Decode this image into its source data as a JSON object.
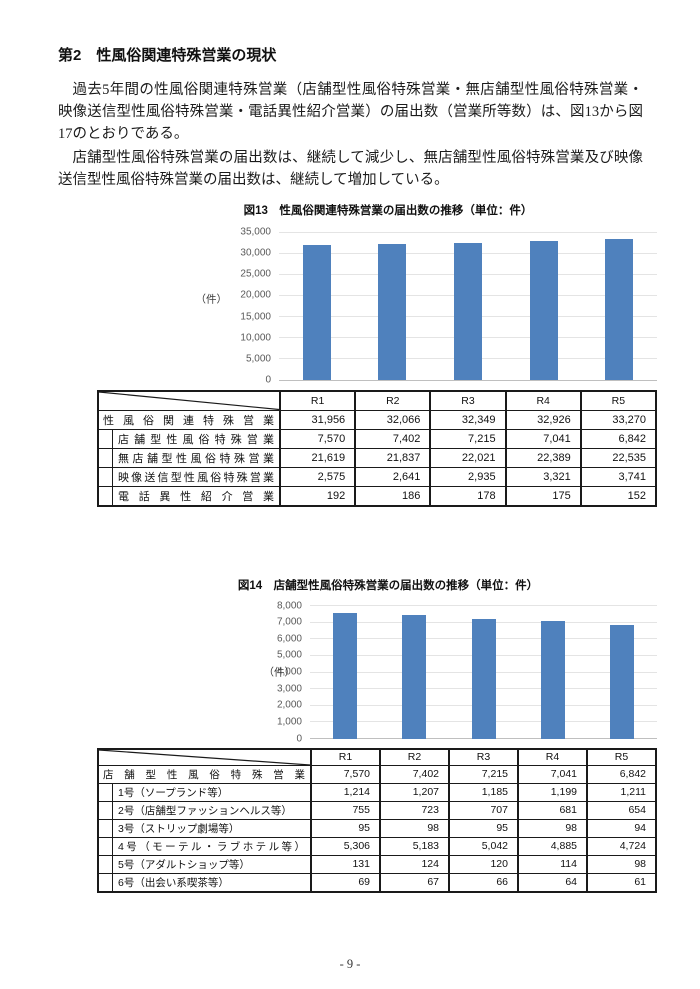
{
  "page": {
    "footer": "- 9 -"
  },
  "heading": {
    "number": "第2",
    "title": "性風俗関連特殊営業の現状"
  },
  "paragraphs": [
    "過去5年間の性風俗関連特殊営業（店舗型性風俗特殊営業・無店舗型性風俗特殊営業・映像送信型性風俗特殊営業・電話異性紹介営業）の届出数（営業所等数）は、図13から図17のとおりである。",
    "店舗型性風俗特殊営業の届出数は、継続して減少し、無店舗型性風俗特殊営業及び映像送信型性風俗特殊営業の届出数は、継続して増加している。"
  ],
  "chart_data": [
    {
      "id": "fig13",
      "type": "bar",
      "title": "図13　性風俗関連特殊営業の届出数の推移（単位：件）",
      "categories": [
        "R1",
        "R2",
        "R3",
        "R4",
        "R5"
      ],
      "values": [
        31956,
        32066,
        32349,
        32926,
        33270
      ],
      "ylabel": "（件）",
      "xlabel": "",
      "ylim": [
        0,
        35000
      ],
      "ytick_step": 5000,
      "yticks": [
        "35,000",
        "30,000",
        "25,000",
        "20,000",
        "15,000",
        "10,000",
        "5,000",
        "0"
      ],
      "grid": true,
      "legend": "none",
      "bar_color": "#4F81BD"
    },
    {
      "id": "fig14",
      "type": "bar",
      "title": "図14　店舗型性風俗特殊営業の届出数の推移（単位：件）",
      "categories": [
        "R1",
        "R2",
        "R3",
        "R4",
        "R5"
      ],
      "values": [
        7570,
        7402,
        7215,
        7041,
        6842
      ],
      "ylabel": "（件）",
      "xlabel": "",
      "ylim": [
        0,
        8000
      ],
      "ytick_step": 1000,
      "yticks": [
        "8,000",
        "7,000",
        "6,000",
        "5,000",
        "4,000",
        "3,000",
        "2,000",
        "1,000",
        "0"
      ],
      "grid": true,
      "legend": "none",
      "bar_color": "#4F81BD"
    }
  ],
  "table13": {
    "columns": [
      "R1",
      "R2",
      "R3",
      "R4",
      "R5"
    ],
    "rows": [
      {
        "label": "性風俗関連特殊営業",
        "indent": false,
        "justify": true,
        "values": [
          "31,956",
          "32,066",
          "32,349",
          "32,926",
          "33,270"
        ]
      },
      {
        "label": "店舗型性風俗特殊営業",
        "indent": true,
        "justify": true,
        "values": [
          "7,570",
          "7,402",
          "7,215",
          "7,041",
          "6,842"
        ]
      },
      {
        "label": "無店舗型性風俗特殊営業",
        "indent": true,
        "justify": true,
        "values": [
          "21,619",
          "21,837",
          "22,021",
          "22,389",
          "22,535"
        ]
      },
      {
        "label": "映像送信型性風俗特殊営業",
        "indent": true,
        "justify": true,
        "values": [
          "2,575",
          "2,641",
          "2,935",
          "3,321",
          "3,741"
        ]
      },
      {
        "label": "電話異性紹介営業",
        "indent": true,
        "justify": true,
        "values": [
          "192",
          "186",
          "178",
          "175",
          "152"
        ]
      }
    ]
  },
  "table14": {
    "columns": [
      "R1",
      "R2",
      "R3",
      "R4",
      "R5"
    ],
    "rows": [
      {
        "label": "店舗型性風俗特殊営業",
        "indent": false,
        "justify": true,
        "values": [
          "7,570",
          "7,402",
          "7,215",
          "7,041",
          "6,842"
        ]
      },
      {
        "label": "1号（ソープランド等）",
        "indent": true,
        "justify": false,
        "values": [
          "1,214",
          "1,207",
          "1,185",
          "1,199",
          "1,211"
        ]
      },
      {
        "label": "2号（店舗型ファッションヘルス等）",
        "indent": true,
        "justify": false,
        "values": [
          "755",
          "723",
          "707",
          "681",
          "654"
        ]
      },
      {
        "label": "3号（ストリップ劇場等）",
        "indent": true,
        "justify": false,
        "values": [
          "95",
          "98",
          "95",
          "98",
          "94"
        ]
      },
      {
        "label": "4号（モーテル・ラブホテル等）",
        "indent": true,
        "justify": true,
        "values": [
          "5,306",
          "5,183",
          "5,042",
          "4,885",
          "4,724"
        ]
      },
      {
        "label": "5号（アダルトショップ等）",
        "indent": true,
        "justify": false,
        "values": [
          "131",
          "124",
          "120",
          "114",
          "98"
        ]
      },
      {
        "label": "6号（出会い系喫茶等）",
        "indent": true,
        "justify": false,
        "values": [
          "69",
          "67",
          "66",
          "64",
          "61"
        ]
      }
    ]
  }
}
